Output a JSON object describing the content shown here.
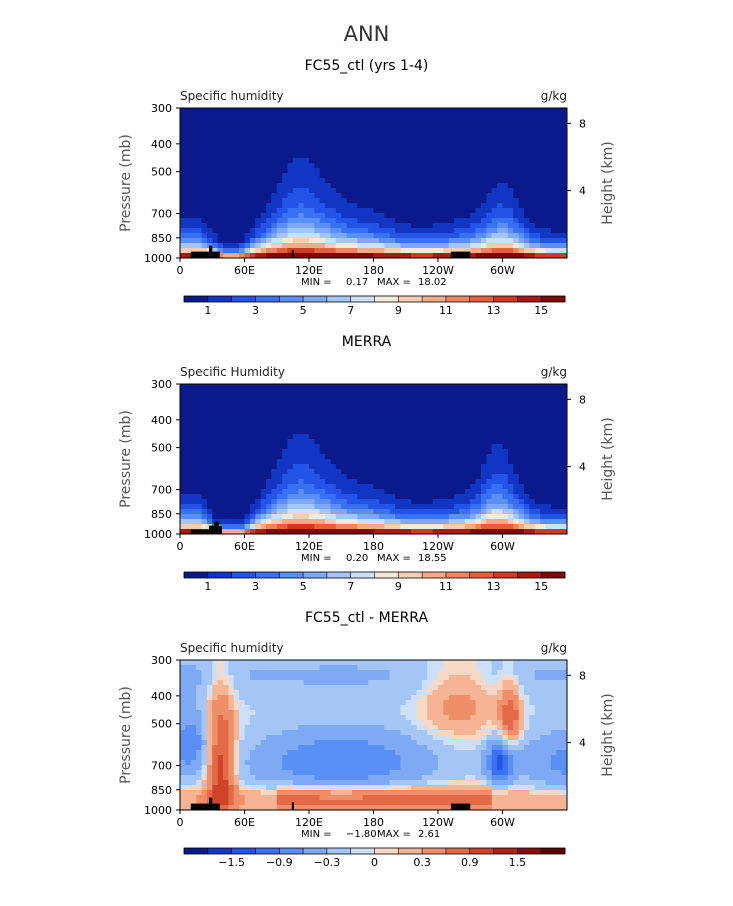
{
  "page": {
    "title": "ANN"
  },
  "colorbars": {
    "humidity": {
      "colors": [
        "#0a1a8c",
        "#1236c4",
        "#2454e6",
        "#3a70f2",
        "#5a8ff5",
        "#7eaaf5",
        "#a4c6f7",
        "#cde0f9",
        "#f4ead8",
        "#f7cdb2",
        "#f5aa86",
        "#ef8560",
        "#e4603d",
        "#cc3b22",
        "#a71c12",
        "#7d0a08"
      ],
      "labels": [
        "1",
        "3",
        "5",
        "7",
        "9",
        "11",
        "13",
        "15"
      ]
    },
    "difference": {
      "colors": [
        "#0a1a8c",
        "#1236c4",
        "#2454e6",
        "#3a70f2",
        "#5a8ff5",
        "#7eaaf5",
        "#a4c6f7",
        "#cde0f9",
        "#f7d8c4",
        "#f5b493",
        "#ef8f69",
        "#e46a47",
        "#cf4428",
        "#ab2414",
        "#860f09",
        "#5a0000"
      ],
      "labels": [
        "−1.5",
        "−0.9",
        "−0.3",
        "0",
        "0.3",
        "0.9",
        "1.5"
      ]
    }
  },
  "chart_data": [
    {
      "type": "heatmap",
      "title": "FC55_ctl (yrs 1-4)",
      "left_label": "Specific humidity",
      "right_label": "g/kg",
      "ylabel": "Pressure (mb)",
      "ylabel_right": "Height (km)",
      "x_ticks": [
        "0",
        "60E",
        "120E",
        "180",
        "120W",
        "60W"
      ],
      "x_tick_lon": [
        0,
        60,
        120,
        180,
        240,
        300
      ],
      "xlim": [
        0,
        360
      ],
      "y_ticks": [
        "300",
        "400",
        "500",
        "700",
        "850",
        "1000"
      ],
      "y_tick_p": [
        300,
        400,
        500,
        700,
        850,
        1000
      ],
      "ylim": [
        300,
        1000
      ],
      "right_ticks": [
        "8",
        "4"
      ],
      "right_tick_km": [
        8,
        4
      ],
      "min_label": "MIN =",
      "min_value": "0.17",
      "max_label": "MAX =",
      "max_value": "18.02",
      "colorbar": "humidity",
      "variant": "model"
    },
    {
      "type": "heatmap",
      "title": "MERRA",
      "left_label": "Specific Humidity",
      "right_label": "g/kg",
      "ylabel": "Pressure (mb)",
      "ylabel_right": "Height (km)",
      "x_ticks": [
        "0",
        "60E",
        "120E",
        "180",
        "120W",
        "60W"
      ],
      "x_tick_lon": [
        0,
        60,
        120,
        180,
        240,
        300
      ],
      "xlim": [
        0,
        360
      ],
      "y_ticks": [
        "300",
        "400",
        "500",
        "700",
        "850",
        "1000"
      ],
      "y_tick_p": [
        300,
        400,
        500,
        700,
        850,
        1000
      ],
      "ylim": [
        300,
        1000
      ],
      "right_ticks": [
        "8",
        "4"
      ],
      "right_tick_km": [
        8,
        4
      ],
      "min_label": "MIN =",
      "min_value": "0.20",
      "max_label": "MAX =",
      "max_value": "18.55",
      "colorbar": "humidity",
      "variant": "obs"
    },
    {
      "type": "heatmap",
      "title": "FC55_ctl - MERRA",
      "left_label": "Specific humidity",
      "right_label": "g/kg",
      "ylabel": "Pressure (mb)",
      "ylabel_right": "Height (km)",
      "x_ticks": [
        "0",
        "60E",
        "120E",
        "180",
        "120W",
        "60W"
      ],
      "x_tick_lon": [
        0,
        60,
        120,
        180,
        240,
        300
      ],
      "xlim": [
        0,
        360
      ],
      "y_ticks": [
        "300",
        "400",
        "500",
        "700",
        "850",
        "1000"
      ],
      "y_tick_p": [
        300,
        400,
        500,
        700,
        850,
        1000
      ],
      "ylim": [
        300,
        1000
      ],
      "right_ticks": [
        "8",
        "4"
      ],
      "right_tick_km": [
        8,
        4
      ],
      "min_label": "MIN =",
      "min_value": "−1.80",
      "max_label": "MAX =",
      "max_value": "2.61",
      "colorbar": "difference",
      "variant": "diff"
    }
  ]
}
